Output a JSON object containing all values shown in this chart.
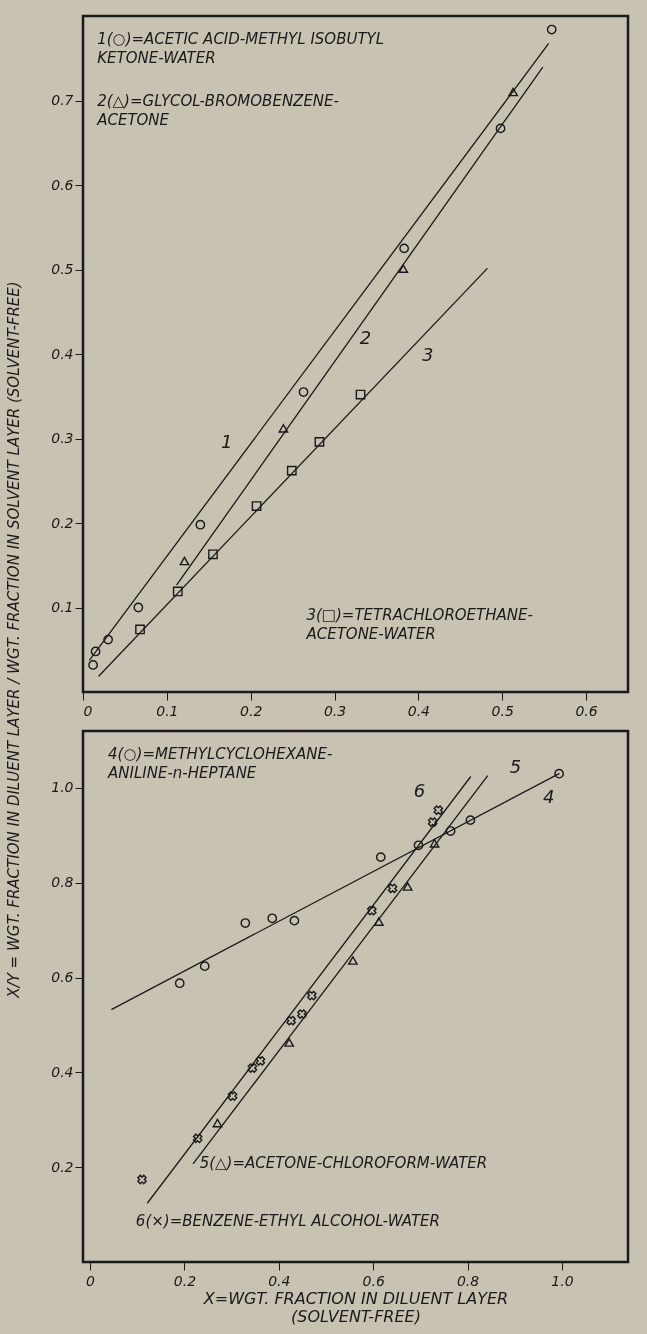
{
  "chart_data": [
    {
      "type": "scatter",
      "ylabel": "X/Y = WGT. FRACTION IN DILUENT LAYER / WGT. FRACTION IN SOLVENT LAYER (SOLVENT-FREE)",
      "xlim": [
        0,
        0.65
      ],
      "ylim": [
        0,
        0.8
      ],
      "xticks": [
        0,
        0.1,
        0.2,
        0.3,
        0.4,
        0.5,
        0.6
      ],
      "yticks": [
        0.1,
        0.2,
        0.3,
        0.4,
        0.5,
        0.6,
        0.7
      ],
      "grid": false,
      "series": [
        {
          "type": "scatter",
          "marker": "circle",
          "color": "#1a1a1a",
          "x": [
            0.012,
            0.015,
            0.03,
            0.066,
            0.14,
            0.263,
            0.383,
            0.498,
            0.559
          ],
          "values": [
            0.032,
            0.048,
            0.062,
            0.1,
            0.198,
            0.355,
            0.525,
            0.667,
            0.784
          ]
        },
        {
          "type": "line",
          "marker": "none",
          "line_style": "solid",
          "color": "#1a1a1a",
          "x": [
            0.008,
            0.555
          ],
          "values": [
            0.038,
            0.767
          ]
        },
        {
          "type": "scatter",
          "marker": "triangle",
          "color": "#1a1a1a",
          "x": [
            0.121,
            0.239,
            0.382,
            0.513
          ],
          "values": [
            0.155,
            0.312,
            0.501,
            0.71
          ]
        },
        {
          "type": "line",
          "marker": "none",
          "line_style": "solid",
          "color": "#1a1a1a",
          "x": [
            0.112,
            0.548
          ],
          "values": [
            0.127,
            0.739
          ]
        },
        {
          "type": "scatter",
          "marker": "square",
          "color": "#1a1a1a",
          "x": [
            0.068,
            0.113,
            0.155,
            0.207,
            0.249,
            0.282,
            0.331
          ],
          "values": [
            0.074,
            0.119,
            0.163,
            0.22,
            0.262,
            0.296,
            0.352
          ]
        },
        {
          "type": "line",
          "marker": "none",
          "line_style": "solid",
          "color": "#1a1a1a",
          "x": [
            0.019,
            0.482
          ],
          "values": [
            0.019,
            0.501
          ]
        }
      ],
      "annotations": [
        "1(○)=ACETIC ACID-METHYL ISOBUTYL\nKETONE-WATER",
        "2(△)=GLYCOL-BROMOBENZENE-\nACETONE",
        "3(□)=TETRACHLOROETHANE-\nACETONE-WATER",
        "1",
        "2",
        "3"
      ]
    },
    {
      "type": "scatter",
      "xlabel": "X=WGT. FRACTION IN DILUENT LAYER\n(SOLVENT-FREE)",
      "xlim": [
        -0.015,
        1.14
      ],
      "ylim": [
        0,
        1.12
      ],
      "xticks": [
        0,
        0.2,
        0.4,
        0.6,
        0.8,
        {
          "value": 1,
          "label": "1.0"
        }
      ],
      "yticks": [
        0.2,
        0.4,
        0.6,
        0.8,
        {
          "value": 1,
          "label": "1.0"
        }
      ],
      "grid": false,
      "series": [
        {
          "type": "scatter",
          "marker": "circle",
          "color": "#1a1a1a",
          "x": [
            0.19,
            0.243,
            0.329,
            0.386,
            0.433,
            0.616,
            0.696,
            0.764,
            0.806,
            0.994
          ],
          "values": [
            0.588,
            0.624,
            0.715,
            0.725,
            0.72,
            0.854,
            0.879,
            0.909,
            0.932,
            1.03
          ]
        },
        {
          "type": "line",
          "marker": "none",
          "line_style": "solid",
          "color": "#1a1a1a",
          "x": [
            0.046,
            0.994
          ],
          "values": [
            0.533,
            1.03
          ]
        },
        {
          "type": "scatter",
          "marker": "triangle",
          "color": "#1a1a1a",
          "x": [
            0.27,
            0.422,
            0.557,
            0.612,
            0.673,
            0.73
          ],
          "values": [
            0.293,
            0.463,
            0.636,
            0.718,
            0.792,
            0.883
          ]
        },
        {
          "type": "line",
          "marker": "none",
          "line_style": "solid",
          "color": "#1a1a1a",
          "x": [
            0.219,
            0.842
          ],
          "values": [
            0.208,
            1.025
          ]
        },
        {
          "type": "scatter",
          "marker": "cross",
          "color": "#1a1a1a",
          "x": [
            0.11,
            0.228,
            0.302,
            0.344,
            0.361,
            0.426,
            0.449,
            0.47,
            0.597,
            0.641,
            0.726,
            0.738
          ],
          "values": [
            0.174,
            0.261,
            0.35,
            0.409,
            0.424,
            0.509,
            0.523,
            0.562,
            0.741,
            0.788,
            0.928,
            0.953
          ]
        },
        {
          "type": "line",
          "marker": "none",
          "line_style": "solid",
          "color": "#1a1a1a",
          "x": [
            0.122,
            0.806
          ],
          "values": [
            0.125,
            1.023
          ]
        }
      ],
      "annotations": [
        "4(○)=METHYLCYCLOHEXANE-\nANILINE-n-HEPTANE",
        "5(△)=ACETONE-CHLOROFORM-WATER",
        "6(×)=BENZENE-ETHYL ALCOHOL-WATER",
        "4",
        "5",
        "6"
      ]
    }
  ]
}
